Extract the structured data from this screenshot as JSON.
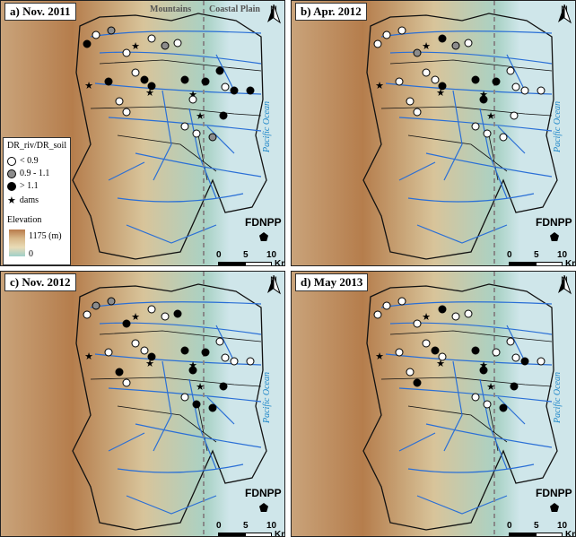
{
  "panels": [
    {
      "id": "a",
      "label": "a) Nov. 2011"
    },
    {
      "id": "b",
      "label": "b) Apr. 2012"
    },
    {
      "id": "c",
      "label": "c) Nov. 2012"
    },
    {
      "id": "d",
      "label": "d) May 2013"
    }
  ],
  "zones": {
    "mountains": "Mountains",
    "coastal": "Coastal Plain"
  },
  "legend": {
    "title": "DR_riv/DR_soil",
    "items": [
      {
        "label": "< 0.9",
        "color": "#ffffff"
      },
      {
        "label": "0.9 - 1.1",
        "color": "#8c8c8c"
      },
      {
        "label": "> 1.1",
        "color": "#000000"
      }
    ],
    "dams": "dams",
    "elevation_title": "Elevation",
    "elev_max": "1175 (m)",
    "elev_min": "0"
  },
  "ocean_label": "Pacific Ocean",
  "plant_label": "FDNPP",
  "north": "N",
  "scale": {
    "t0": "0",
    "t5": "5",
    "t10": "10",
    "unit": "Km"
  },
  "colors": {
    "river": "#2a6fd6",
    "ocean": "#cfe6ea",
    "highland": "#b98552",
    "lowland": "#e7d9b0",
    "coast": "#9fd0c8"
  },
  "sites": {
    "a": [
      "w",
      "g",
      "k",
      "k",
      "w",
      "w",
      "g",
      "w",
      "w",
      "k",
      "k",
      "w",
      "w",
      "k",
      "k",
      "k",
      "w",
      "k",
      "k",
      "w",
      "k",
      "w",
      "w",
      "g"
    ],
    "b": [
      "w",
      "w",
      "w",
      "w",
      "g",
      "k",
      "g",
      "w",
      "w",
      "w",
      "k",
      "w",
      "w",
      "k",
      "k",
      "w",
      "w",
      "w",
      "w",
      "k",
      "w",
      "w",
      "w",
      "w"
    ],
    "c": [
      "g",
      "g",
      "w",
      "w",
      "k",
      "w",
      "w",
      "k",
      "w",
      "w",
      "k",
      "k",
      "w",
      "k",
      "k",
      "w",
      "w",
      "w",
      "w",
      "k",
      "k",
      "w",
      "k",
      "k"
    ],
    "d": [
      "w",
      "w",
      "w",
      "w",
      "w",
      "k",
      "w",
      "w",
      "w",
      "k",
      "w",
      "w",
      "k",
      "k",
      "w",
      "w",
      "w",
      "k",
      "w",
      "k",
      "k",
      "w",
      "w",
      "k"
    ]
  }
}
